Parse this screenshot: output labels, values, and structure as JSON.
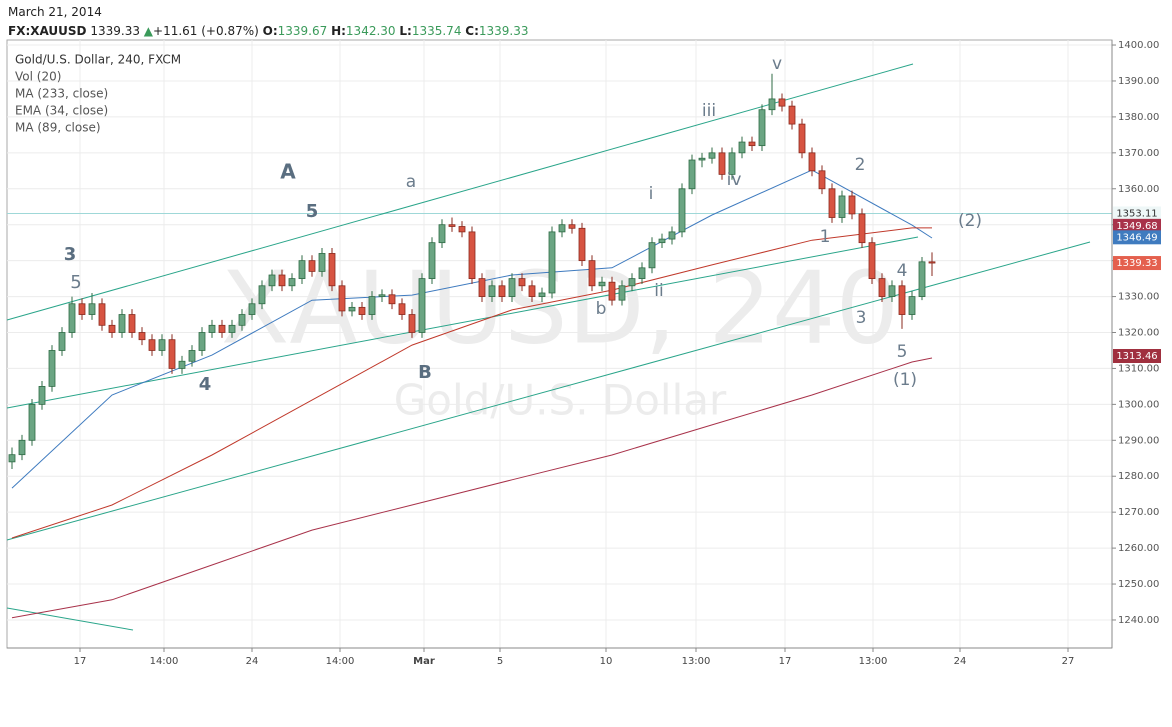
{
  "header": {
    "date": "March 21, 2014",
    "symbol": "FX:XAUUSD",
    "last": "1339.33",
    "change": "+11.61 (+0.87%)",
    "o_label": "O:",
    "o": "1339.67",
    "h_label": "H:",
    "h": "1342.30",
    "l_label": "L:",
    "l": "1335.74",
    "c_label": "C:",
    "c": "1339.33"
  },
  "chart_data": {
    "type": "candlestick",
    "title": "Gold/U.S. Dollar, 240, FXCM",
    "volume_label": "Vol (20)",
    "watermark": "XAUUSD, 240",
    "watermark_sub": "Gold/U.S. Dollar",
    "up_color": "#6ba583",
    "down_color": "#d75442",
    "xlim": [
      -0.5,
      110
    ],
    "ylim": [
      1232.2,
      1401.4
    ],
    "xticks": [
      {
        "value": 6.8,
        "label": "17"
      },
      {
        "value": 15.2,
        "label": "14:00"
      },
      {
        "value": 24,
        "label": "24"
      },
      {
        "value": 32.8,
        "label": "14:00"
      },
      {
        "value": 41.2,
        "label": "Mar"
      },
      {
        "value": 48.8,
        "label": "5"
      },
      {
        "value": 59.4,
        "label": "10"
      },
      {
        "value": 68.4,
        "label": "13:00"
      },
      {
        "value": 77.3,
        "label": "17"
      },
      {
        "value": 86.1,
        "label": "13:00"
      },
      {
        "value": 94.8,
        "label": "24"
      },
      {
        "value": 105.6,
        "label": "27"
      }
    ],
    "yticks": [
      {
        "value": 1240,
        "label": "1240.00"
      },
      {
        "value": 1250,
        "label": "1250.00"
      },
      {
        "value": 1260,
        "label": "1260.00"
      },
      {
        "value": 1270,
        "label": "1270.00"
      },
      {
        "value": 1280,
        "label": "1280.00"
      },
      {
        "value": 1290,
        "label": "1290.00"
      },
      {
        "value": 1300,
        "label": "1300.00"
      },
      {
        "value": 1310,
        "label": "1310.00"
      },
      {
        "value": 1320,
        "label": "1320.00"
      },
      {
        "value": 1330,
        "label": "1330.00"
      },
      {
        "value": 1340,
        "label": "1340.00"
      },
      {
        "value": 1350,
        "label": "1350.00"
      },
      {
        "value": 1360,
        "label": "1360.00"
      },
      {
        "value": 1370,
        "label": "1370.00"
      },
      {
        "value": 1380,
        "label": "1380.00"
      },
      {
        "value": 1390,
        "label": "1390.00"
      },
      {
        "value": 1400,
        "label": "1400.00"
      }
    ],
    "grid": true,
    "candles": [
      [
        1284,
        1288,
        1282,
        1286
      ],
      [
        1286,
        1291.5,
        1284.5,
        1290
      ],
      [
        1290,
        1301.5,
        1288.5,
        1300
      ],
      [
        1300,
        1306.5,
        1298.5,
        1305
      ],
      [
        1305,
        1316.5,
        1303.5,
        1315
      ],
      [
        1315,
        1321.5,
        1313.5,
        1320
      ],
      [
        1320,
        1330,
        1318.5,
        1328
      ],
      [
        1328,
        1329.5,
        1323.5,
        1325
      ],
      [
        1325,
        1331,
        1323.5,
        1328
      ],
      [
        1328,
        1329.5,
        1320.5,
        1322
      ],
      [
        1322,
        1323.5,
        1318.5,
        1320
      ],
      [
        1320,
        1326.5,
        1318.5,
        1325
      ],
      [
        1325,
        1326.5,
        1318.5,
        1320
      ],
      [
        1320,
        1321.5,
        1316.5,
        1318
      ],
      [
        1318,
        1319.5,
        1313.5,
        1315
      ],
      [
        1315,
        1319.5,
        1313.5,
        1318
      ],
      [
        1318,
        1319.5,
        1308.5,
        1310
      ],
      [
        1310,
        1313.5,
        1308.5,
        1312
      ],
      [
        1312,
        1316.5,
        1310.5,
        1315
      ],
      [
        1315,
        1321.5,
        1313.5,
        1320
      ],
      [
        1320,
        1323.5,
        1318.5,
        1322
      ],
      [
        1322,
        1323.5,
        1318.5,
        1320
      ],
      [
        1320,
        1323.5,
        1318.5,
        1322
      ],
      [
        1322,
        1326.5,
        1320.5,
        1325
      ],
      [
        1325,
        1329.5,
        1323.5,
        1328
      ],
      [
        1328,
        1334.5,
        1326.5,
        1333
      ],
      [
        1333,
        1337.5,
        1331.5,
        1336
      ],
      [
        1336,
        1337.5,
        1331.5,
        1333
      ],
      [
        1333,
        1336.5,
        1331.5,
        1335
      ],
      [
        1335,
        1341.5,
        1333.5,
        1340
      ],
      [
        1340,
        1341.5,
        1335.5,
        1337
      ],
      [
        1337,
        1343.5,
        1335.5,
        1342
      ],
      [
        1342,
        1343.5,
        1331.5,
        1333
      ],
      [
        1333,
        1334.5,
        1324.5,
        1326
      ],
      [
        1326,
        1328.5,
        1324.5,
        1327
      ],
      [
        1327,
        1328.5,
        1323.5,
        1325
      ],
      [
        1325,
        1331.5,
        1323.5,
        1330
      ],
      [
        1330,
        1332,
        1328.5,
        1330.5
      ],
      [
        1330.5,
        1332,
        1326.5,
        1328
      ],
      [
        1328,
        1329.5,
        1323.5,
        1325
      ],
      [
        1325,
        1326.5,
        1318.5,
        1320
      ],
      [
        1320,
        1336.5,
        1318.5,
        1335
      ],
      [
        1335,
        1346.5,
        1333.5,
        1345
      ],
      [
        1345,
        1351.5,
        1343.5,
        1350
      ],
      [
        1350,
        1352,
        1348,
        1349.5
      ],
      [
        1349.5,
        1351,
        1346.5,
        1348
      ],
      [
        1348,
        1349.5,
        1333.5,
        1335
      ],
      [
        1335,
        1336.5,
        1328.5,
        1330
      ],
      [
        1330,
        1334.5,
        1328.5,
        1333
      ],
      [
        1333,
        1334.5,
        1328.5,
        1330
      ],
      [
        1330,
        1336.5,
        1328.5,
        1335
      ],
      [
        1335,
        1336.5,
        1331.5,
        1333
      ],
      [
        1333,
        1334.5,
        1328.5,
        1330
      ],
      [
        1330,
        1332.5,
        1328.5,
        1331
      ],
      [
        1331,
        1349.5,
        1329.5,
        1348
      ],
      [
        1348,
        1351.5,
        1346.5,
        1350
      ],
      [
        1350,
        1351.5,
        1347.5,
        1349
      ],
      [
        1349,
        1350.5,
        1338.5,
        1340
      ],
      [
        1340,
        1341.5,
        1331.5,
        1333
      ],
      [
        1333,
        1335.5,
        1331.5,
        1334
      ],
      [
        1334,
        1335.5,
        1327.5,
        1329
      ],
      [
        1329,
        1334.5,
        1327.5,
        1333
      ],
      [
        1333,
        1336.5,
        1331.5,
        1335
      ],
      [
        1335,
        1339.5,
        1333.5,
        1338
      ],
      [
        1338,
        1346.5,
        1336.5,
        1345
      ],
      [
        1345,
        1347.5,
        1343.5,
        1346
      ],
      [
        1346,
        1349.5,
        1344.5,
        1348
      ],
      [
        1348,
        1361.5,
        1346.5,
        1360
      ],
      [
        1360,
        1369.5,
        1358.5,
        1368
      ],
      [
        1368,
        1370,
        1366,
        1368.5
      ],
      [
        1368.5,
        1371.5,
        1367,
        1370
      ],
      [
        1370,
        1371.5,
        1362.5,
        1364
      ],
      [
        1364,
        1371.5,
        1362.5,
        1370
      ],
      [
        1370,
        1374.5,
        1368.5,
        1373
      ],
      [
        1373,
        1374.5,
        1370.5,
        1372
      ],
      [
        1372,
        1383.5,
        1370.5,
        1382
      ],
      [
        1382,
        1392,
        1380.5,
        1385
      ],
      [
        1385,
        1386.5,
        1381.5,
        1383
      ],
      [
        1383,
        1384.5,
        1376.5,
        1378
      ],
      [
        1378,
        1379.5,
        1368.5,
        1370
      ],
      [
        1370,
        1371.5,
        1363.5,
        1365
      ],
      [
        1365,
        1366.5,
        1358.5,
        1360
      ],
      [
        1360,
        1361.5,
        1350.5,
        1352
      ],
      [
        1352,
        1359.5,
        1350.5,
        1358
      ],
      [
        1358,
        1359.5,
        1351.5,
        1353
      ],
      [
        1353,
        1354.5,
        1343.5,
        1345
      ],
      [
        1345,
        1346.5,
        1333.5,
        1335
      ],
      [
        1335,
        1336.5,
        1328.5,
        1330
      ],
      [
        1330,
        1334.5,
        1328.5,
        1333
      ],
      [
        1333,
        1334.5,
        1321,
        1325
      ],
      [
        1325,
        1331.5,
        1323.5,
        1330
      ],
      [
        1330,
        1341,
        1329,
        1339.67
      ],
      [
        1339.67,
        1342.3,
        1335.74,
        1339.33
      ]
    ],
    "ma_lines": [
      {
        "name": "MA (233, close)",
        "color": "#a8324a",
        "x": [
          0,
          10,
          20,
          30,
          40,
          50,
          60,
          70,
          80,
          90,
          92
        ],
        "values": [
          1240.6,
          1245.6,
          1255.3,
          1265,
          1272,
          1279,
          1285.9,
          1294.3,
          1302.6,
          1311.8,
          1312.9
        ]
      },
      {
        "name": "EMA (34, close)",
        "color": "#3f7bbf",
        "x": [
          0,
          10,
          20,
          30,
          40,
          50,
          60,
          70,
          80,
          90,
          92
        ],
        "values": [
          1276.7,
          1302.6,
          1313.7,
          1329,
          1330.4,
          1336,
          1338,
          1352.7,
          1365.2,
          1349.9,
          1346.3
        ]
      },
      {
        "name": "MA (89, close)",
        "color": "#c0392b",
        "x": [
          0,
          10,
          20,
          30,
          40,
          50,
          60,
          70,
          80,
          90,
          92
        ],
        "values": [
          1262.8,
          1272,
          1285.9,
          1301.2,
          1316.5,
          1326.3,
          1331.8,
          1338.8,
          1345.7,
          1349.1,
          1349.1
        ]
      }
    ],
    "horizontal_line": {
      "value": 1353.11,
      "color": "#9fd8d8"
    },
    "price_labels": [
      {
        "value": 1349.68,
        "color": "#a8324a"
      },
      {
        "value": 1346.49,
        "color": "#3f7bbf"
      },
      {
        "value": 1339.33,
        "color": "#e4604e"
      },
      {
        "value": 1313.46,
        "color": "#a0303f"
      }
    ],
    "annotations": [
      "A",
      "5",
      "3",
      "5",
      "4",
      "a",
      "B",
      "b",
      "i",
      "ii",
      "iii",
      "iv",
      "v",
      "1",
      "2",
      "3",
      "4",
      "5",
      "(1)",
      "(2)"
    ]
  }
}
